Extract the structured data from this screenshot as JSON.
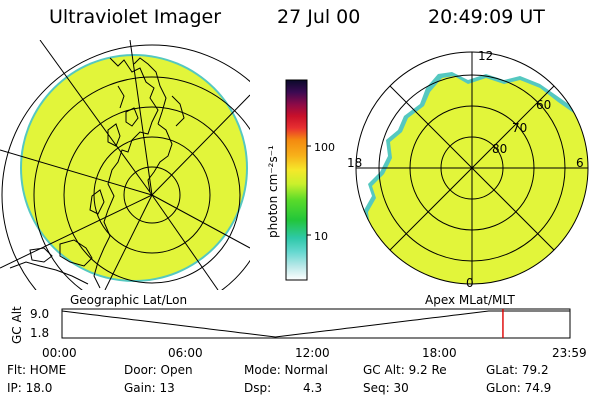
{
  "header": {
    "instrument": "Ultraviolet Imager",
    "date": "27 Jul 00",
    "time": "20:49:09 UT"
  },
  "colorbar": {
    "unit_label": "photon cm⁻²s⁻¹",
    "ticks": [
      "100",
      "10"
    ]
  },
  "geo_panel": {
    "label": "Geographic Lat/Lon"
  },
  "mag_panel": {
    "label": "Apex MLat/MLT",
    "mlt_labels": [
      "12",
      "18",
      "6",
      "0"
    ],
    "mlat_labels": [
      "60",
      "70",
      "80"
    ]
  },
  "altitude_plot": {
    "ylabel": "GC Alt",
    "yticks": [
      "9.0",
      "1.8"
    ],
    "xticks": [
      "00:00",
      "06:00",
      "12:00",
      "18:00",
      "23:59"
    ],
    "cursor_fraction": 0.868,
    "cursor_color": "#dd0000"
  },
  "footer": {
    "flt": "Flt: HOME",
    "ip": "IP: 18.0",
    "door": "Door: Open",
    "gain": "Gain: 13",
    "mode": "Mode: Normal",
    "dsp_label": "Dsp:",
    "dsp_value": "4.3",
    "gcalt": "GC Alt: 9.2 Re",
    "seq": "Seq: 30",
    "glat": "GLat: 79.2",
    "glon": "GLon: 74.9"
  },
  "colors": {
    "image_fill": "#e2f53a",
    "image_edge": "#55c8c0"
  }
}
